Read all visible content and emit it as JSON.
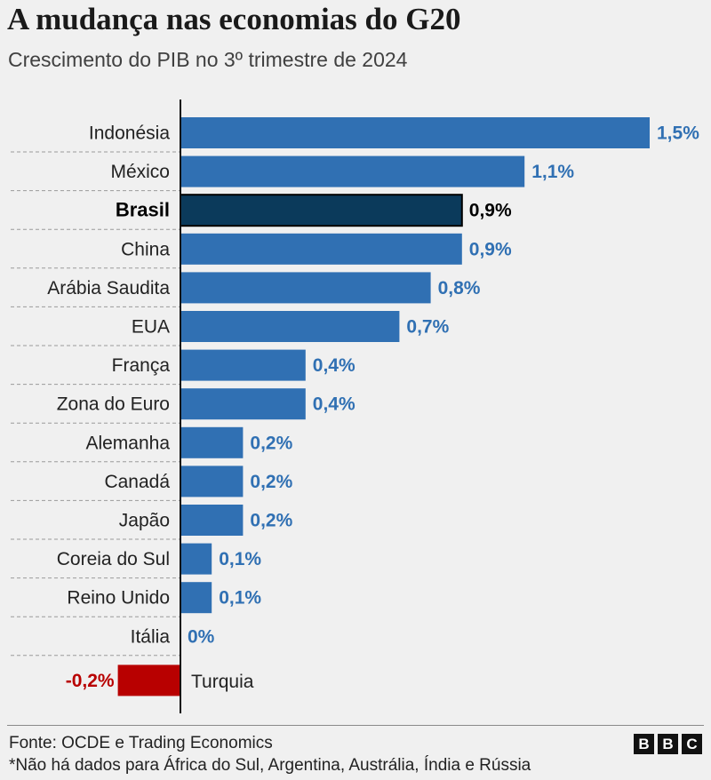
{
  "header": {
    "title": "A mudança nas economias do G20",
    "subtitle": "Crescimento do PIB no 3º trimestre de 2024"
  },
  "footer": {
    "source": "Fonte: OCDE e Trading Economics",
    "note": "*Não há dados para África do Sul, Argentina, Austrália, Índia e Rússia",
    "logo_letters": [
      "B",
      "B",
      "C"
    ]
  },
  "colors": {
    "bar": "#3070b3",
    "highlight": "#0b3a5b",
    "negative": "#b80000",
    "label_value": "#3070b3",
    "label_negative": "#b80000"
  },
  "chart_data": {
    "type": "bar",
    "orientation": "horizontal",
    "title": "A mudança nas economias do G20",
    "subtitle": "Crescimento do PIB no 3º trimestre de 2024",
    "unit": "%",
    "highlight": "Brasil",
    "xlim": [
      -0.2,
      1.5
    ],
    "categories": [
      "Indonésia",
      "México",
      "Brasil",
      "China",
      "Arábia Saudita",
      "EUA",
      "França",
      "Zona do Euro",
      "Alemanha",
      "Canadá",
      "Japão",
      "Coreia do Sul",
      "Reino Unido",
      "Itália",
      "Turquia"
    ],
    "values": [
      1.5,
      1.1,
      0.9,
      0.9,
      0.8,
      0.7,
      0.4,
      0.4,
      0.2,
      0.2,
      0.2,
      0.1,
      0.1,
      0,
      -0.2
    ],
    "value_labels": [
      "1,5%",
      "1,1%",
      "0,9%",
      "0,9%",
      "0,8%",
      "0,7%",
      "0,4%",
      "0,4%",
      "0,2%",
      "0,2%",
      "0,2%",
      "0,1%",
      "0,1%",
      "0%",
      "-0,2%"
    ]
  }
}
